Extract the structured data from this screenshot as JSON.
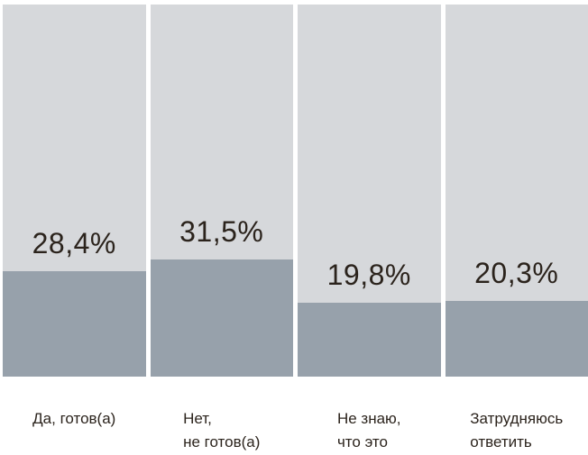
{
  "chart_data": {
    "type": "bar",
    "title": "",
    "xlabel": "",
    "ylabel": "",
    "unit": "%",
    "ylim": [
      0,
      100
    ],
    "grid": false,
    "legend": "none",
    "categories": [
      "Да, готов(а)",
      "Нет, не готов(а)",
      "Не знаю, что это",
      "Затрудняюсь ответить"
    ],
    "values": [
      28.4,
      31.5,
      19.8,
      20.3
    ],
    "points": [
      {
        "value": 28.4,
        "display": "28,4%",
        "label_lines": [
          "Да, готов(а)"
        ]
      },
      {
        "value": 31.5,
        "display": "31,5%",
        "label_lines": [
          "Нет,",
          "не готов(а)"
        ]
      },
      {
        "value": 19.8,
        "display": "19,8%",
        "label_lines": [
          "Не знаю,",
          "что это"
        ]
      },
      {
        "value": 20.3,
        "display": "20,3%",
        "label_lines": [
          "Затрудняюсь",
          "ответить"
        ]
      }
    ],
    "colors": {
      "track": "#d6d8db",
      "fill": "#97a1ab",
      "text": "#2b231c",
      "background": "#ffffff"
    }
  }
}
